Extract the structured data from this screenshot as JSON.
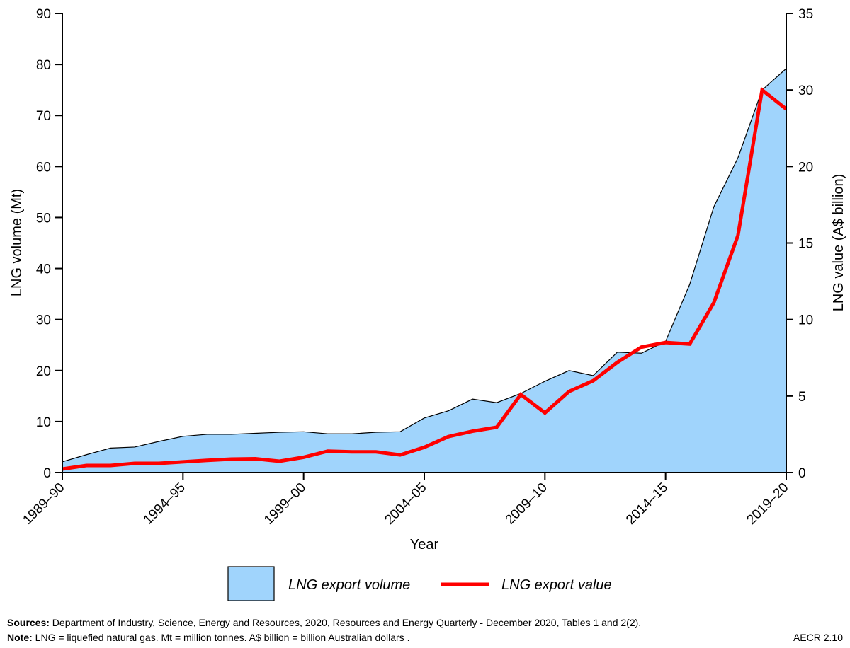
{
  "chart_data": {
    "type": "area+line",
    "xlabel": "Year",
    "ylabel_left": "LNG volume (Mt)",
    "ylabel_right": "LNG value (A$ billion)",
    "ylim_left": [
      0,
      90
    ],
    "yticks_left": [
      0,
      10,
      20,
      30,
      40,
      50,
      60,
      70,
      80,
      90
    ],
    "yticks_right_labels": [
      0,
      5,
      10,
      15,
      20,
      30,
      35
    ],
    "grid": false,
    "legend_position": "bottom",
    "categories": [
      "1989–90",
      "1990–91",
      "1991–92",
      "1992–93",
      "1993–94",
      "1994–95",
      "1995–96",
      "1996–97",
      "1997–98",
      "1998–99",
      "1999–00",
      "2000–01",
      "2001–02",
      "2002–03",
      "2003–04",
      "2004–05",
      "2005–06",
      "2006–07",
      "2007–08",
      "2008–09",
      "2009–10",
      "2010–11",
      "2011–12",
      "2012–13",
      "2013–14",
      "2014–15",
      "2015–16",
      "2016–17",
      "2017–18",
      "2018–19",
      "2019–20"
    ],
    "xtick_labels": [
      "1989–90",
      "1994–95",
      "1999–00",
      "2004–05",
      "2009–10",
      "2014–15",
      "2019–20"
    ],
    "series": [
      {
        "name": "LNG export volume",
        "type": "area",
        "axis": "left",
        "color": "#a0d4fc",
        "values": [
          2.1,
          3.5,
          4.8,
          5.0,
          6.1,
          7.1,
          7.5,
          7.5,
          7.7,
          7.9,
          8.0,
          7.6,
          7.6,
          7.9,
          8.0,
          10.7,
          12.1,
          14.4,
          13.7,
          15.5,
          17.9,
          20.0,
          19.0,
          23.6,
          23.4,
          25.7,
          36.9,
          52.1,
          61.7,
          75.0,
          79.2
        ]
      },
      {
        "name": "LNG export value",
        "type": "line",
        "axis": "right",
        "color": "#ff0000",
        "values": [
          0.23,
          0.46,
          0.46,
          0.6,
          0.6,
          0.7,
          0.8,
          0.88,
          0.9,
          0.74,
          1.0,
          1.4,
          1.35,
          1.35,
          1.15,
          1.65,
          2.35,
          2.7,
          2.96,
          5.1,
          3.9,
          5.3,
          6.0,
          7.2,
          8.2,
          8.5,
          8.4,
          11.1,
          15.5,
          30,
          27.5
        ]
      }
    ]
  },
  "footer": {
    "sources_label": "Sources:",
    "sources_text": " Department of Industry, Science, Energy and Resources, 2020, Resources and Energy Quarterly - December 2020, Tables 1 and 2(2).",
    "note_label": "Note:",
    "note_text": " LNG = liquefied natural gas. Mt = million tonnes. A$ billion = billion Australian dollars  .",
    "figure_id": "AECR 2.10"
  }
}
